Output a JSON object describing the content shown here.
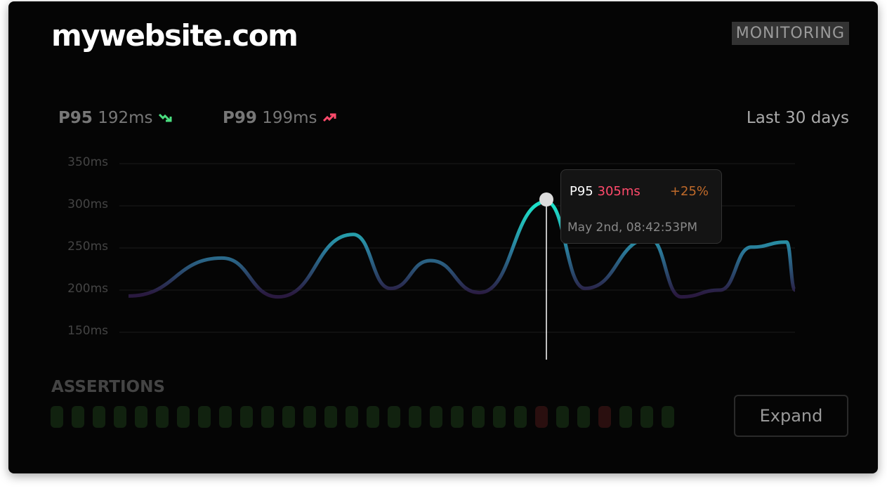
{
  "header": {
    "title": "mywebsite.com",
    "badge": "MONITORING"
  },
  "metrics": [
    {
      "label": "P95",
      "value": "192ms",
      "trend": "down",
      "trend_color": "#4ade80",
      "icon": "trend-down-icon"
    },
    {
      "label": "P99",
      "value": "199ms",
      "trend": "up",
      "trend_color": "#ff4a6b",
      "icon": "trend-up-icon"
    }
  ],
  "range": "Last 30 days",
  "chart_data": {
    "type": "line",
    "y_ticks": [
      "350ms",
      "300ms",
      "250ms",
      "200ms",
      "150ms"
    ],
    "ylim": [
      150,
      350
    ],
    "grid": true,
    "series": [
      {
        "values": [
          193,
          238,
          192,
          266,
          202,
          235,
          197,
          305,
          202,
          261,
          192,
          200,
          251,
          257,
          200
        ]
      }
    ],
    "colors": {
      "high": "#1de0c8",
      "low": "#2a1a40"
    }
  },
  "tooltip": {
    "label": "P95",
    "value": "305ms",
    "change": "+25%",
    "timestamp": "May 2nd, 08:42:53PM"
  },
  "assertions": {
    "title": "ASSERTIONS",
    "results": [
      "pass",
      "pass",
      "pass",
      "pass",
      "pass",
      "pass",
      "pass",
      "pass",
      "pass",
      "pass",
      "pass",
      "pass",
      "pass",
      "pass",
      "pass",
      "pass",
      "pass",
      "pass",
      "pass",
      "pass",
      "pass",
      "pass",
      "pass",
      "fail",
      "pass",
      "pass",
      "fail",
      "pass",
      "pass",
      "pass"
    ],
    "pass_color": "#11220f",
    "fail_color": "#2a0f0f"
  },
  "expand_label": "Expand"
}
